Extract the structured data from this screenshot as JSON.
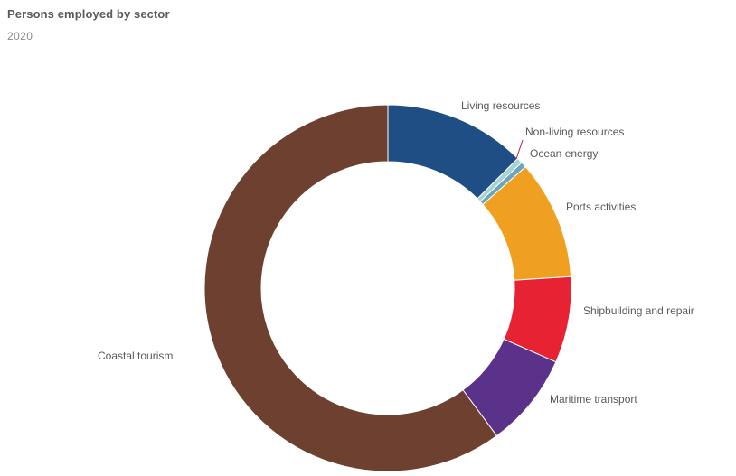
{
  "header": {
    "title": "Persons employed by sector",
    "subtitle": "2020"
  },
  "chart_data": {
    "type": "pie",
    "donut": true,
    "title": "Persons employed by sector",
    "subtitle": "2020",
    "legend": "none",
    "slices": [
      {
        "label": "Living resources",
        "value": 12.5,
        "color": "#1f4e84"
      },
      {
        "label": "Non-living resources",
        "value": 0.5,
        "color": "#a8d3d3"
      },
      {
        "label": "Ocean energy",
        "value": 0.5,
        "color": "#6aa6bd"
      },
      {
        "label": "Ports activities",
        "value": 10.5,
        "color": "#f0a020"
      },
      {
        "label": "Shipbuilding and repair",
        "value": 7.6,
        "color": "#e62233"
      },
      {
        "label": "Maritime transport",
        "value": 8.3,
        "color": "#5a3289"
      },
      {
        "label": "Coastal tourism",
        "value": 60.1,
        "color": "#6e4030"
      }
    ]
  }
}
